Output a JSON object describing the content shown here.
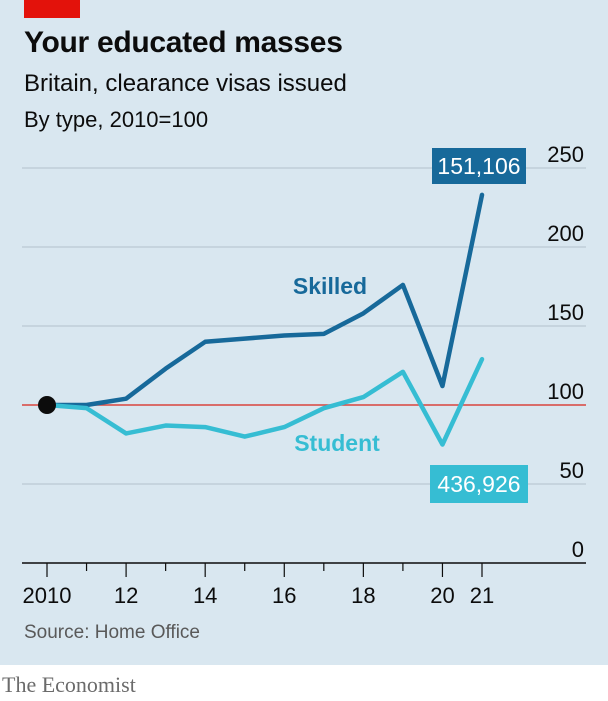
{
  "header": {
    "title": "Your educated masses",
    "subtitle": "Britain, clearance visas issued",
    "subtitle2": "By type, 2010=100"
  },
  "footer": {
    "source": "Source: Home Office",
    "brand": "The Economist"
  },
  "colors": {
    "skilled": "#17699a",
    "student": "#36bdd3",
    "baseline": "#d9453d",
    "grid": "#b2c2cc",
    "background": "#d9e7f0",
    "accent": "#e3120b"
  },
  "chart_data": {
    "type": "line",
    "title": "Your educated masses",
    "subtitle": "Britain, clearance visas issued",
    "ylabel": "By type, 2010=100",
    "ylim": [
      0,
      250
    ],
    "xlim": [
      2010,
      2021
    ],
    "y_ticks": [
      0,
      50,
      100,
      150,
      200,
      250
    ],
    "y_axis_side": "right",
    "x_ticks": [
      2010,
      2011,
      2012,
      2013,
      2014,
      2015,
      2016,
      2017,
      2018,
      2019,
      2020,
      2021
    ],
    "x_tick_labels": [
      "2010",
      "",
      "12",
      "",
      "14",
      "",
      "16",
      "",
      "18",
      "",
      "20",
      "21"
    ],
    "grid": true,
    "baseline": 100,
    "series": [
      {
        "name": "Skilled",
        "color_key": "skilled",
        "x": [
          2010,
          2011,
          2012,
          2013,
          2014,
          2015,
          2016,
          2017,
          2018,
          2019,
          2020,
          2021
        ],
        "values": [
          100,
          100,
          104,
          123,
          140,
          142,
          144,
          145,
          158,
          176,
          112,
          233
        ],
        "end_callout": "151,106"
      },
      {
        "name": "Student",
        "color_key": "student",
        "x": [
          2010,
          2011,
          2012,
          2013,
          2014,
          2015,
          2016,
          2017,
          2018,
          2019,
          2020,
          2021
        ],
        "values": [
          100,
          98,
          82,
          87,
          86,
          80,
          86,
          98,
          105,
          121,
          75,
          129
        ],
        "end_callout": "436,926"
      }
    ]
  }
}
